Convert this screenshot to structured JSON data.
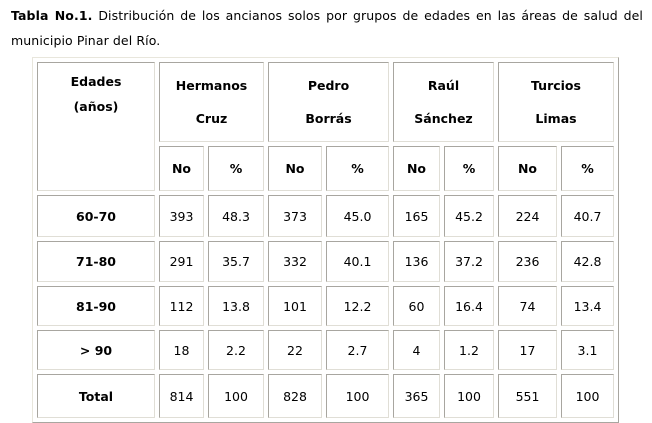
{
  "caption": {
    "label": "Tabla No.1.",
    "text": " Distribución de los ancianos solos por grupos de edades en las áreas de salud del municipio Pinar del Río."
  },
  "table": {
    "age_header": [
      "Edades",
      "(años)"
    ],
    "areas": [
      {
        "line1": "Hermanos",
        "line2": "Cruz"
      },
      {
        "line1": "Pedro",
        "line2": "Borrás"
      },
      {
        "line1": "Raúl",
        "line2": "Sánchez"
      },
      {
        "line1": "Turcios",
        "line2": "Limas"
      }
    ],
    "sub_no": "No",
    "sub_pct": "%",
    "rows": [
      {
        "label": "60-70",
        "values": [
          "393",
          "48.3",
          "373",
          "45.0",
          "165",
          "45.2",
          "224",
          "40.7"
        ]
      },
      {
        "label": "71-80",
        "values": [
          "291",
          "35.7",
          "332",
          "40.1",
          "136",
          "37.2",
          "236",
          "42.8"
        ]
      },
      {
        "label": "81-90",
        "values": [
          "112",
          "13.8",
          "101",
          "12.2",
          "60",
          "16.4",
          "74",
          "13.4"
        ]
      },
      {
        "label": "> 90",
        "values": [
          "18",
          "2.2",
          "22",
          "2.7",
          "4",
          "1.2",
          "17",
          "3.1"
        ]
      },
      {
        "label": "Total",
        "values": [
          "814",
          "100",
          "828",
          "100",
          "365",
          "100",
          "551",
          "100"
        ]
      }
    ]
  }
}
